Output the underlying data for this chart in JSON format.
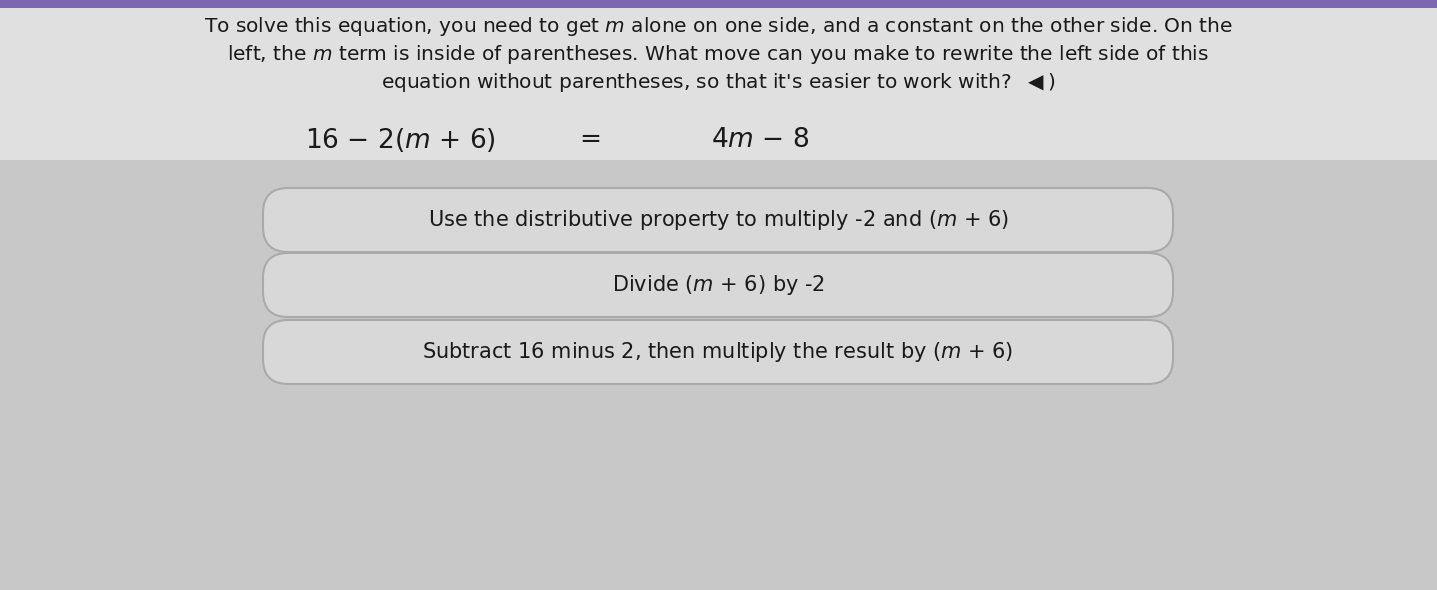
{
  "background_color": "#c8c8c8",
  "content_bg": "#dcdcdc",
  "text_color": "#1a1a1a",
  "title_line1": "To solve this equation, you need to get $m$ alone on one side, and a constant on the other side. On the",
  "title_line2": "left, the $m$ term is inside of parentheses. What move can you make to rewrite the left side of this",
  "title_line3": "equation without parentheses, so that it’s easier to work with?  ◄︎)",
  "eq_left": "16 – 2($m$ + 6)",
  "eq_equals": "=",
  "eq_right": "4$m$ – 8",
  "choices": [
    "Use the distributive property to multiply -2 and ($m$ + 6)",
    "Divide ($m$ + 6) by -2",
    "Subtract 16 minus 2, then multiply the result by ($m$ + 6)"
  ],
  "box_facecolor": "#d8d8d8",
  "box_edgecolor": "#aaaaaa",
  "fig_width": 14.37,
  "fig_height": 5.9,
  "dpi": 100
}
